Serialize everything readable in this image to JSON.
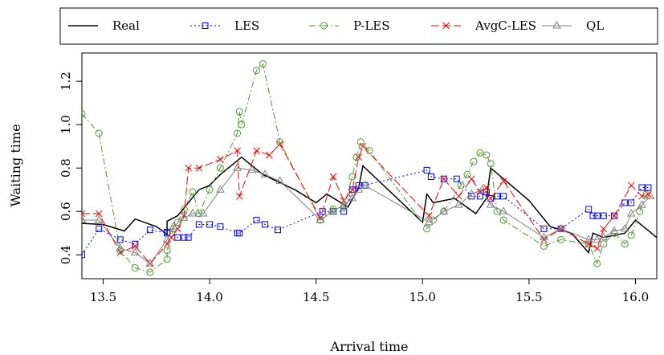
{
  "chart_data": {
    "type": "line",
    "xlabel": "Arrival time",
    "ylabel": "Waiting time",
    "xlim": [
      13.4,
      16.1
    ],
    "ylim": [
      0.29,
      1.33
    ],
    "xticks": [
      13.5,
      14.0,
      14.5,
      15.0,
      15.5,
      16.0
    ],
    "xtick_labels": [
      "13.5",
      "14.0",
      "14.5",
      "15.0",
      "15.5",
      "16.0"
    ],
    "yticks": [
      0.4,
      0.6,
      0.8,
      1.0,
      1.2
    ],
    "ytick_labels": [
      "0.4",
      "0.6",
      "0.8",
      "1.0",
      "1.2"
    ],
    "grid": false,
    "legend_placement": "top, outside plot",
    "series": [
      {
        "name": "Real",
        "color": "#000000",
        "style": "solid",
        "marker": "none",
        "x": [
          13.4,
          13.5,
          13.6,
          13.65,
          13.75,
          13.8,
          13.8,
          13.85,
          13.9,
          13.95,
          14.0,
          14.05,
          14.15,
          14.25,
          14.4,
          14.5,
          14.55,
          14.65,
          14.7,
          14.72,
          15.0,
          15.02,
          15.05,
          15.15,
          15.25,
          15.3,
          15.32,
          15.5,
          15.6,
          15.7,
          15.78,
          15.8,
          15.85,
          15.95,
          16.0,
          16.1
        ],
        "y": [
          0.545,
          0.54,
          0.51,
          0.565,
          0.53,
          0.495,
          0.555,
          0.58,
          0.64,
          0.7,
          0.72,
          0.77,
          0.85,
          0.77,
          0.7,
          0.64,
          0.68,
          0.62,
          0.71,
          0.81,
          0.55,
          0.68,
          0.64,
          0.66,
          0.59,
          0.66,
          0.8,
          0.65,
          0.53,
          0.5,
          0.41,
          0.5,
          0.48,
          0.5,
          0.56,
          0.48
        ]
      },
      {
        "name": "LES",
        "color": "#0000FF",
        "style": "dotted",
        "marker": "square",
        "x": [
          13.4,
          13.48,
          13.58,
          13.65,
          13.72,
          13.8,
          13.8,
          13.85,
          13.88,
          13.9,
          13.95,
          14.0,
          14.05,
          14.13,
          14.14,
          14.22,
          14.26,
          14.32,
          14.53,
          14.58,
          14.63,
          14.67,
          14.7,
          14.73,
          15.02,
          15.04,
          15.1,
          15.16,
          15.23,
          15.27,
          15.3,
          15.32,
          15.35,
          15.38,
          15.57,
          15.65,
          15.78,
          15.8,
          15.82,
          15.85,
          15.9,
          15.95,
          15.98,
          16.03,
          16.06
        ],
        "y": [
          0.4,
          0.52,
          0.47,
          0.45,
          0.515,
          0.5,
          0.505,
          0.48,
          0.48,
          0.48,
          0.54,
          0.54,
          0.53,
          0.5,
          0.5,
          0.56,
          0.54,
          0.515,
          0.6,
          0.6,
          0.6,
          0.7,
          0.72,
          0.72,
          0.79,
          0.76,
          0.75,
          0.75,
          0.67,
          0.67,
          0.69,
          0.66,
          0.67,
          0.67,
          0.52,
          0.52,
          0.61,
          0.58,
          0.58,
          0.58,
          0.58,
          0.64,
          0.64,
          0.71,
          0.71
        ]
      },
      {
        "name": "P-LES",
        "color": "#4C9A2A",
        "style": "dashdot",
        "marker": "circle",
        "x": [
          13.4,
          13.48,
          13.58,
          13.65,
          13.72,
          13.8,
          13.8,
          13.83,
          13.85,
          13.88,
          13.92,
          13.95,
          14.0,
          14.05,
          14.13,
          14.14,
          14.15,
          14.22,
          14.25,
          14.33,
          14.52,
          14.58,
          14.63,
          14.67,
          14.69,
          14.71,
          14.75,
          15.02,
          15.05,
          15.1,
          15.18,
          15.21,
          15.24,
          15.27,
          15.3,
          15.32,
          15.35,
          15.38,
          15.57,
          15.65,
          15.78,
          15.82,
          15.85,
          15.9,
          15.95,
          15.98,
          16.02,
          16.05
        ],
        "y": [
          1.05,
          0.96,
          0.42,
          0.34,
          0.32,
          0.38,
          0.42,
          0.52,
          0.55,
          0.61,
          0.69,
          0.59,
          0.7,
          0.8,
          0.96,
          1.06,
          1.0,
          1.25,
          1.28,
          0.92,
          0.56,
          0.61,
          0.62,
          0.76,
          0.85,
          0.92,
          0.88,
          0.52,
          0.56,
          0.6,
          0.72,
          0.77,
          0.83,
          0.87,
          0.86,
          0.82,
          0.6,
          0.56,
          0.44,
          0.47,
          0.45,
          0.36,
          0.45,
          0.5,
          0.45,
          0.49,
          0.6,
          0.68
        ]
      },
      {
        "name": "AvgC-LES",
        "color": "#FF0000",
        "style": "longdash",
        "marker": "cross",
        "x": [
          13.4,
          13.48,
          13.58,
          13.65,
          13.72,
          13.8,
          13.82,
          13.85,
          13.88,
          13.9,
          13.95,
          14.05,
          14.13,
          14.14,
          14.22,
          14.28,
          14.33,
          14.52,
          14.58,
          14.63,
          14.67,
          14.7,
          14.72,
          15.03,
          15.1,
          15.17,
          15.23,
          15.27,
          15.3,
          15.32,
          15.38,
          15.57,
          15.65,
          15.78,
          15.82,
          15.85,
          15.9,
          15.98,
          16.03,
          16.06
        ],
        "y": [
          0.59,
          0.59,
          0.41,
          0.44,
          0.36,
          0.45,
          0.48,
          0.52,
          0.58,
          0.8,
          0.8,
          0.84,
          0.88,
          0.67,
          0.88,
          0.86,
          0.91,
          0.57,
          0.76,
          0.65,
          0.7,
          0.85,
          0.9,
          0.58,
          0.75,
          0.67,
          0.75,
          0.69,
          0.71,
          0.66,
          0.74,
          0.47,
          0.52,
          0.45,
          0.43,
          0.52,
          0.58,
          0.72,
          0.67,
          0.68
        ]
      },
      {
        "name": "QL",
        "color": "#808080",
        "style": "solid",
        "marker": "triangle",
        "x": [
          13.4,
          13.48,
          13.58,
          13.65,
          13.72,
          13.8,
          13.83,
          13.88,
          13.92,
          13.97,
          14.05,
          14.13,
          14.2,
          14.26,
          14.33,
          14.52,
          14.58,
          14.63,
          14.67,
          14.7,
          14.73,
          15.03,
          15.1,
          15.17,
          15.23,
          15.28,
          15.32,
          15.38,
          15.57,
          15.65,
          15.78,
          15.82,
          15.85,
          15.9,
          15.95,
          15.98,
          16.03,
          16.07
        ],
        "y": [
          0.56,
          0.56,
          0.43,
          0.41,
          0.36,
          0.47,
          0.53,
          0.57,
          0.59,
          0.59,
          0.7,
          0.8,
          0.79,
          0.77,
          0.74,
          0.56,
          0.6,
          0.63,
          0.66,
          0.7,
          0.72,
          0.55,
          0.6,
          0.63,
          0.68,
          0.7,
          0.63,
          0.6,
          0.48,
          0.52,
          0.47,
          0.47,
          0.48,
          0.51,
          0.52,
          0.59,
          0.63,
          0.67
        ]
      }
    ]
  }
}
